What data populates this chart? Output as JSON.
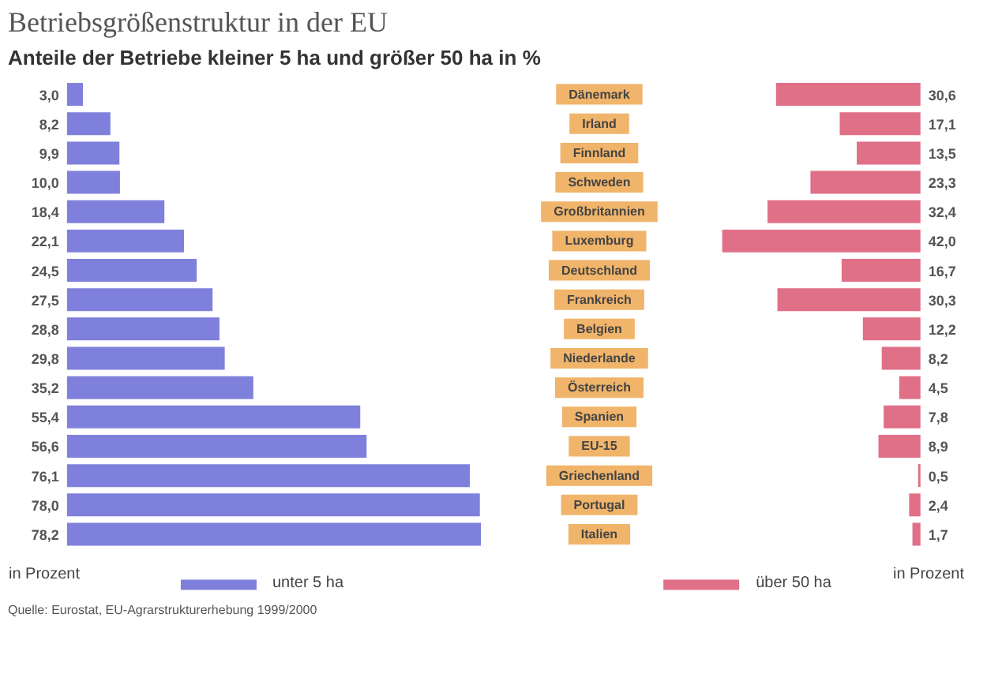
{
  "chart_data": [
    {
      "type": "bar",
      "orientation": "horizontal",
      "title": "Betriebsgrößenstruktur in der EU",
      "subtitle": "Anteile der Betriebe kleiner 5 ha und größer 50 ha in %",
      "series": [
        {
          "name": "unter 5 ha",
          "color": "#7f80dc",
          "values": [
            3.0,
            8.2,
            9.9,
            10.0,
            18.4,
            22.1,
            24.5,
            27.5,
            28.8,
            29.8,
            35.2,
            55.4,
            56.6,
            76.1,
            78.0,
            78.2
          ],
          "value_labels": [
            "3,0",
            "8,2",
            "9,9",
            "10,0",
            "18,4",
            "22,1",
            "24,5",
            "27,5",
            "28,8",
            "29,8",
            "35,2",
            "55,4",
            "56,6",
            "76,1",
            "78,0",
            "78,2"
          ]
        }
      ],
      "legend": "bottom",
      "annotations": [
        "in Prozent",
        "Quelle: Eurostat, EU-Agrarstrukturerhebung 1999/2000"
      ]
    },
    {
      "type": "bar",
      "orientation": "horizontal",
      "categories": [
        "Dänemark",
        "Irland",
        "Finnland",
        "Schweden",
        "Großbritannien",
        "Luxemburg",
        "Deutschland",
        "Frankreich",
        "Belgien",
        "Niederlande",
        "Österreich",
        "Spanien",
        "EU-15",
        "Griechenland",
        "Portugal",
        "Italien"
      ],
      "series": [
        {
          "name": "über 50 ha",
          "color": "#e07088",
          "values": [
            30.6,
            17.1,
            13.5,
            23.3,
            32.4,
            42.0,
            16.7,
            30.3,
            12.2,
            8.2,
            4.5,
            7.8,
            8.9,
            0.5,
            2.4,
            1.7
          ],
          "value_labels": [
            "30,6",
            "17,1",
            "13,5",
            "23,3",
            "32,4",
            "42,0",
            "16,7",
            "30,3",
            "12,2",
            "8,2",
            "4,5",
            "7,8",
            "8,9",
            "0,5",
            "2,4",
            "1,7"
          ]
        }
      ],
      "legend": "bottom",
      "annotations": [
        "in Prozent"
      ]
    }
  ]
}
